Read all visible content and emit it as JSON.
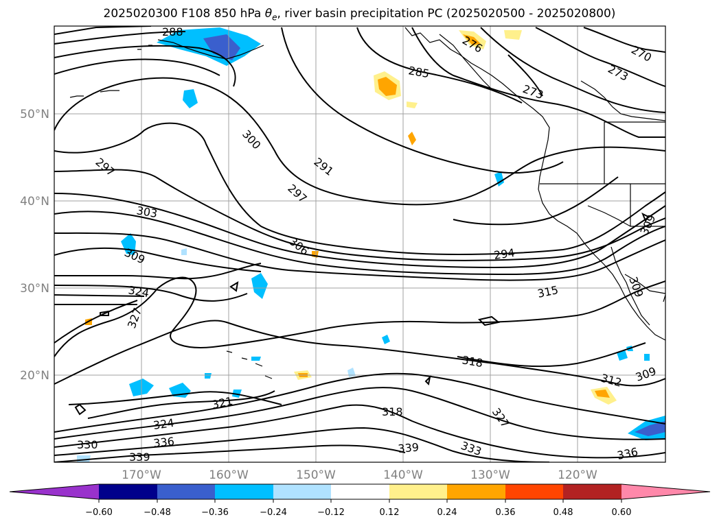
{
  "title_prefix": "2025020300 F108 850 hPa ",
  "title_symbol": "θ",
  "title_symbol_sub": "e",
  "title_suffix": ", river basin precipitation PC (2025020500 - 2025020800)",
  "lat_labels": [
    "50°N",
    "40°N",
    "30°N",
    "20°N"
  ],
  "lon_labels": [
    "170°W",
    "160°W",
    "150°W",
    "140°W",
    "130°W",
    "120°W"
  ],
  "contour_labels": [
    "288",
    "276",
    "270",
    "273",
    "285",
    "273",
    "300",
    "291",
    "297",
    "297",
    "303",
    "306",
    "309",
    "294",
    "309",
    "324",
    "315",
    "327",
    "309",
    "318",
    "312",
    "309",
    "321",
    "318",
    "324",
    "327",
    "336",
    "330",
    "339",
    "333",
    "339",
    "336"
  ],
  "colorbar": {
    "colors": [
      "#9932cc",
      "#00008b",
      "#3a5fcd",
      "#00bfff",
      "#b0e2ff",
      "#ffffff",
      "#fff08c",
      "#ffa500",
      "#ff4500",
      "#b22222",
      "#ff88aa"
    ],
    "tick_labels": [
      "−0.60",
      "−0.48",
      "−0.36",
      "−0.24",
      "−0.12",
      "0.12",
      "0.24",
      "0.36",
      "0.48",
      "0.60"
    ]
  },
  "colors": {
    "contour": "#000000",
    "grid": "#a0a0a0",
    "axis_label": "#808080"
  }
}
